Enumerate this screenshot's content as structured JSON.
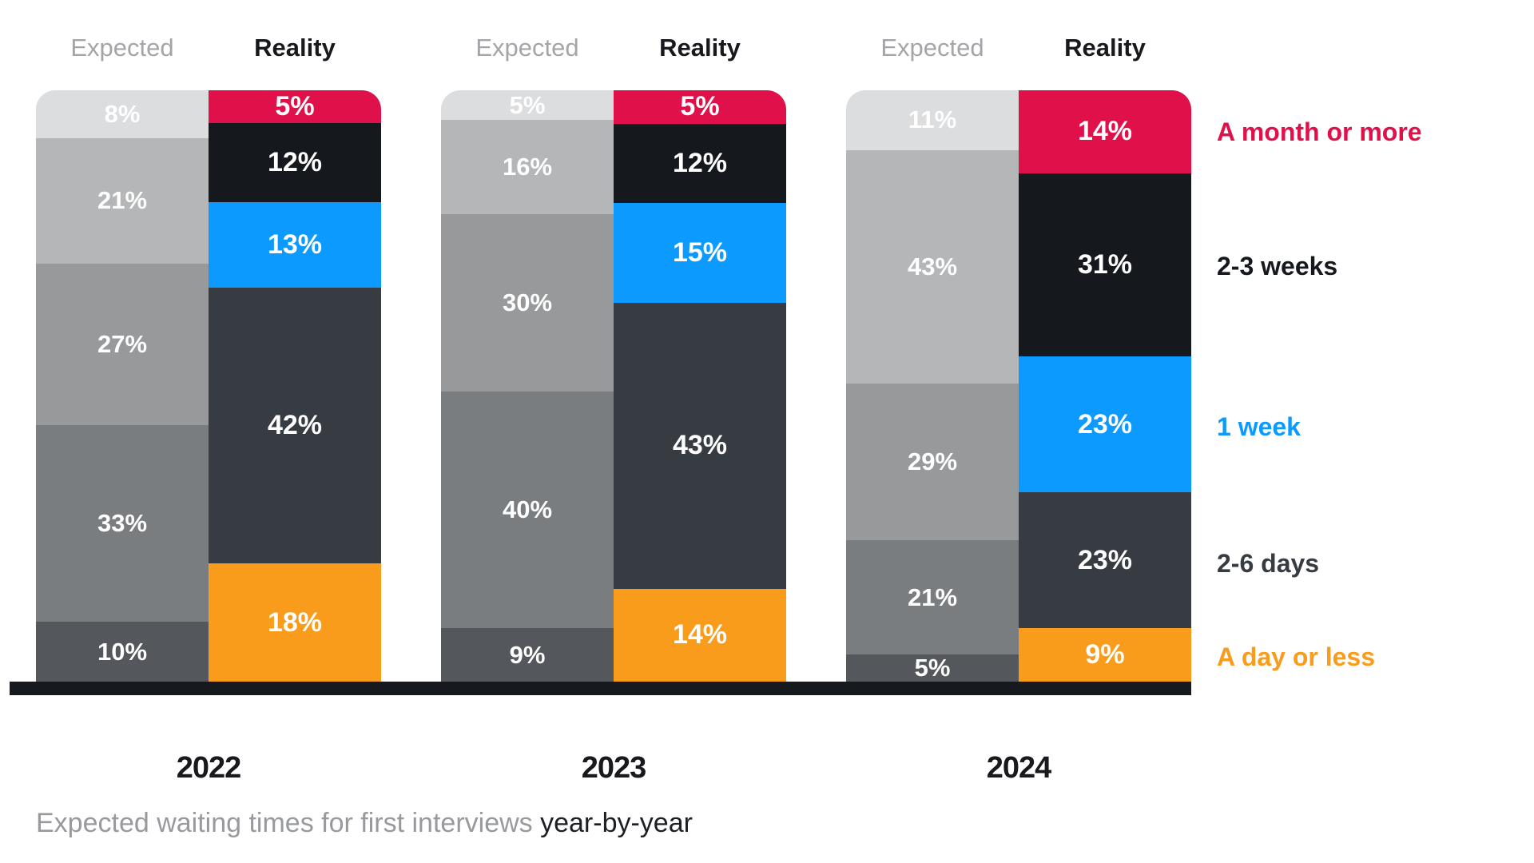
{
  "column_headers": {
    "expected": "Expected",
    "reality": "Reality"
  },
  "legend": [
    {
      "label": "A month or more",
      "color": "#E0114A"
    },
    {
      "label": "2-3 weeks",
      "color": "#15181D"
    },
    {
      "label": "1 week",
      "color": "#0D9AFE"
    },
    {
      "label": "2-6 days",
      "color": "#363C42"
    },
    {
      "label": "A day or less",
      "color": "#F99B1B"
    }
  ],
  "caption": {
    "normal": "Expected waiting times for first interviews ",
    "bold": "year-by-year"
  },
  "chart_data": {
    "type": "bar",
    "stacked": true,
    "orientation": "vertical",
    "unit": "%",
    "title": "Expected waiting times for first interviews year-by-year",
    "categories": [
      "A month or more",
      "2-3 weeks",
      "1 week",
      "2-6 days",
      "A day or less"
    ],
    "series_names": [
      "Expected",
      "Reality"
    ],
    "groups": [
      {
        "year": "2022",
        "expected": [
          8,
          21,
          27,
          33,
          10
        ],
        "reality": [
          5,
          12,
          13,
          42,
          18
        ]
      },
      {
        "year": "2023",
        "expected": [
          5,
          16,
          30,
          40,
          9
        ],
        "reality": [
          5,
          12,
          15,
          43,
          14
        ]
      },
      {
        "year": "2024",
        "expected": [
          11,
          43,
          29,
          21,
          5
        ],
        "reality": [
          14,
          31,
          23,
          23,
          9
        ]
      }
    ],
    "expected_colors": [
      "#DCDDDE",
      "#B4B6B8",
      "#97999B",
      "#7A7D80",
      "#54575B"
    ],
    "reality_colors": [
      "#E0114A",
      "#15181D",
      "#0D9AFE",
      "#363C42",
      "#F99B1B"
    ],
    "legend_position": "right",
    "grid": false,
    "axis": "none (percentage labels printed inside segments)"
  }
}
